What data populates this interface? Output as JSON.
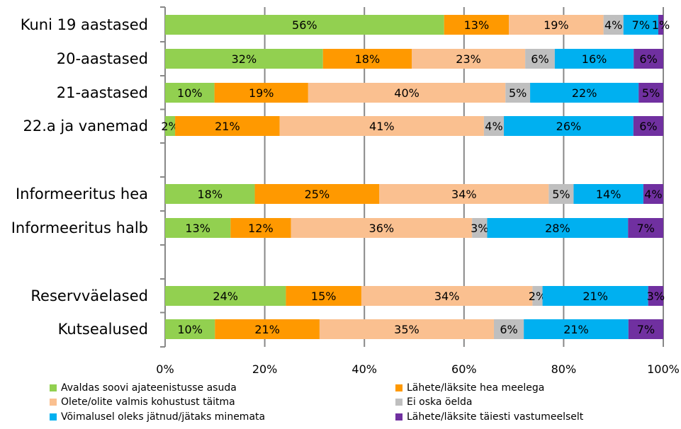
{
  "chart_data": {
    "type": "bar",
    "orientation": "horizontal",
    "stacked": "percent",
    "categories": [
      "Kuni 19 aastased",
      "20-aastased",
      "21-aastased",
      "22.a ja vanemad",
      "",
      "Informeeritus hea",
      "Informeeritus halb",
      "",
      "Reservväelased",
      "Kutsealused"
    ],
    "series": [
      {
        "name": "Avaldas soovi ajateenistusse asuda",
        "color": "#92D050",
        "values": [
          56,
          32,
          10,
          2,
          null,
          18,
          13,
          null,
          24,
          10
        ]
      },
      {
        "name": "Lähete/läksite hea meelega",
        "color": "#FF9900",
        "values": [
          13,
          18,
          19,
          21,
          null,
          25,
          12,
          null,
          15,
          21
        ]
      },
      {
        "name": "Olete/olite valmis kohustust täitma",
        "color": "#FAC090",
        "values": [
          19,
          23,
          40,
          41,
          null,
          34,
          36,
          null,
          34,
          35
        ]
      },
      {
        "name": "Ei oska öelda",
        "color": "#BFBFBF",
        "values": [
          4,
          6,
          5,
          4,
          null,
          5,
          3,
          null,
          2,
          6
        ]
      },
      {
        "name": "Võimalusel oleks jätnud/jätaks minemata",
        "color": "#00B0F0",
        "values": [
          7,
          16,
          22,
          26,
          null,
          14,
          28,
          null,
          21,
          21
        ]
      },
      {
        "name": "Lähete/läksite täiesti vastumeelselt",
        "color": "#7030A0",
        "values": [
          1,
          6,
          5,
          6,
          null,
          4,
          7,
          null,
          3,
          7
        ]
      }
    ],
    "data_labels": [
      [
        "56%",
        "13%",
        "19%",
        "4%",
        "7%",
        "1%"
      ],
      [
        "32%",
        "18%",
        "23%",
        "6%",
        "16%",
        "6%"
      ],
      [
        "10%",
        "19%",
        "40%",
        "5%",
        "22%",
        "5%"
      ],
      [
        "2%",
        "21%",
        "41%",
        "4%",
        "26%",
        "6%"
      ],
      null,
      [
        "18%",
        "25%",
        "34%",
        "5%",
        "14%",
        "4%"
      ],
      [
        "13%",
        "12%",
        "36%",
        "3%",
        "28%",
        "7%"
      ],
      null,
      [
        "24%",
        "15%",
        "34%",
        "2%",
        "21%",
        "3%"
      ],
      [
        "10%",
        "21%",
        "35%",
        "6%",
        "21%",
        "7%"
      ]
    ],
    "xlim": [
      0,
      100
    ],
    "x_ticks": [
      "0%",
      "20%",
      "40%",
      "60%",
      "80%",
      "100%"
    ],
    "grid": true,
    "legend_position": "bottom",
    "title": "",
    "xlabel": "",
    "ylabel": ""
  }
}
